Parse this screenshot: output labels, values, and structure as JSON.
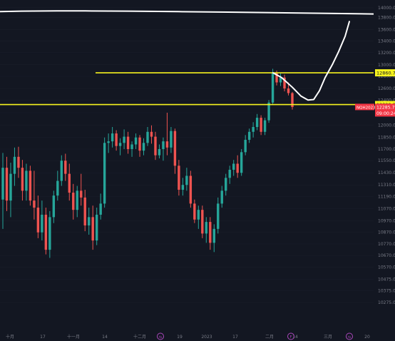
{
  "chart_data": {
    "type": "candlestick",
    "symbol_label": "NQH2023",
    "price_axis": {
      "min": 10275.0,
      "max": 14000.0,
      "ticks": [
        14000.0,
        13800.0,
        13600.0,
        13400.0,
        13200.0,
        13000.0,
        12800.0,
        12600.0,
        12400.0,
        12200.0,
        12000.0,
        11850.0,
        11700.0,
        11550.0,
        11430.0,
        11310.0,
        11190.0,
        11070.0,
        10970.0,
        10870.0,
        10770.0,
        10670.0,
        10570.0,
        10475.0,
        10375.0,
        10275.0
      ],
      "tick_labels": [
        "14000.00",
        "13800.00",
        "13600.00",
        "13400.00",
        "13200.00",
        "13000.00",
        "12800.00",
        "12600.00",
        "12400.00",
        "12200.00",
        "12000.00",
        "11850.00",
        "11700.00",
        "11550.00",
        "11430.00",
        "11310.00",
        "11190.00",
        "11070.00",
        "10970.00",
        "10870.00",
        "10770.00",
        "10670.00",
        "10570.00",
        "10475.00",
        "10375.00",
        "10275.00"
      ]
    },
    "time_axis": {
      "labels": [
        "十月",
        "17",
        "十一月",
        "14",
        "十二月",
        "19",
        "2023",
        "17",
        "二月",
        "14",
        "三月",
        "20"
      ],
      "icon_labels": [
        "⇆",
        "F",
        "⇆"
      ]
    },
    "horizontal_levels": [
      {
        "price": 12860.75,
        "label": "12860.75",
        "color": "#f7f41e"
      },
      {
        "price": 12329.25,
        "label": "12329.25",
        "color": "#f7f41e"
      }
    ],
    "last_price": {
      "price": 12285.75,
      "symbol": "NQH2023",
      "value_label": "12285.75",
      "countdown": "09:00:24",
      "color": "#f23645"
    },
    "colors": {
      "up": "#26a69a",
      "down": "#ef5350",
      "background": "#131722",
      "grid": "#2a2e39",
      "text": "#787b86",
      "annotation": "#ffffff"
    },
    "candles": [
      {
        "o": 11160,
        "h": 11650,
        "l": 10900,
        "c": 11480
      },
      {
        "o": 11480,
        "h": 11600,
        "l": 11050,
        "c": 11150
      },
      {
        "o": 11150,
        "h": 11530,
        "l": 11000,
        "c": 11420
      },
      {
        "o": 11420,
        "h": 11720,
        "l": 11300,
        "c": 11600
      },
      {
        "o": 11600,
        "h": 11730,
        "l": 11380,
        "c": 11480
      },
      {
        "o": 11480,
        "h": 11560,
        "l": 11150,
        "c": 11250
      },
      {
        "o": 11250,
        "h": 11520,
        "l": 11150,
        "c": 11450
      },
      {
        "o": 11450,
        "h": 11500,
        "l": 11100,
        "c": 11150
      },
      {
        "o": 11150,
        "h": 11450,
        "l": 10980,
        "c": 11080
      },
      {
        "o": 11080,
        "h": 11200,
        "l": 10820,
        "c": 10870
      },
      {
        "o": 10870,
        "h": 11150,
        "l": 10800,
        "c": 11020
      },
      {
        "o": 11020,
        "h": 11080,
        "l": 10680,
        "c": 10720
      },
      {
        "o": 10720,
        "h": 11050,
        "l": 10650,
        "c": 11000
      },
      {
        "o": 11000,
        "h": 11250,
        "l": 10950,
        "c": 11200
      },
      {
        "o": 11200,
        "h": 11450,
        "l": 11150,
        "c": 11350
      },
      {
        "o": 11350,
        "h": 11620,
        "l": 11300,
        "c": 11550
      },
      {
        "o": 11550,
        "h": 11640,
        "l": 11350,
        "c": 11420
      },
      {
        "o": 11420,
        "h": 11520,
        "l": 11150,
        "c": 11230
      },
      {
        "o": 11230,
        "h": 11320,
        "l": 10980,
        "c": 11060
      },
      {
        "o": 11060,
        "h": 11300,
        "l": 11000,
        "c": 11250
      },
      {
        "o": 11250,
        "h": 11420,
        "l": 11100,
        "c": 11180
      },
      {
        "o": 11180,
        "h": 11260,
        "l": 10880,
        "c": 10930
      },
      {
        "o": 10930,
        "h": 11080,
        "l": 10850,
        "c": 11000
      },
      {
        "o": 11000,
        "h": 11100,
        "l": 10720,
        "c": 10800
      },
      {
        "o": 10800,
        "h": 11080,
        "l": 10760,
        "c": 11020
      },
      {
        "o": 11020,
        "h": 11220,
        "l": 10980,
        "c": 11120
      },
      {
        "o": 11120,
        "h": 11850,
        "l": 11080,
        "c": 11780
      },
      {
        "o": 11780,
        "h": 11900,
        "l": 11650,
        "c": 11800
      },
      {
        "o": 11800,
        "h": 11980,
        "l": 11720,
        "c": 11900
      },
      {
        "o": 11900,
        "h": 11940,
        "l": 11680,
        "c": 11740
      },
      {
        "o": 11740,
        "h": 11840,
        "l": 11620,
        "c": 11780
      },
      {
        "o": 11780,
        "h": 11950,
        "l": 11700,
        "c": 11860
      },
      {
        "o": 11860,
        "h": 11920,
        "l": 11640,
        "c": 11700
      },
      {
        "o": 11700,
        "h": 11800,
        "l": 11600,
        "c": 11760
      },
      {
        "o": 11760,
        "h": 11900,
        "l": 11700,
        "c": 11850
      },
      {
        "o": 11850,
        "h": 11880,
        "l": 11600,
        "c": 11680
      },
      {
        "o": 11680,
        "h": 11840,
        "l": 11620,
        "c": 11780
      },
      {
        "o": 11780,
        "h": 11980,
        "l": 11740,
        "c": 11920
      },
      {
        "o": 11920,
        "h": 12000,
        "l": 11770,
        "c": 11860
      },
      {
        "o": 11860,
        "h": 11920,
        "l": 11560,
        "c": 11620
      },
      {
        "o": 11620,
        "h": 11760,
        "l": 11580,
        "c": 11700
      },
      {
        "o": 11700,
        "h": 11850,
        "l": 11550,
        "c": 11800
      },
      {
        "o": 11800,
        "h": 12200,
        "l": 11620,
        "c": 11720
      },
      {
        "o": 11720,
        "h": 11980,
        "l": 11650,
        "c": 11930
      },
      {
        "o": 11930,
        "h": 11960,
        "l": 11420,
        "c": 11500
      },
      {
        "o": 11500,
        "h": 11560,
        "l": 11200,
        "c": 11260
      },
      {
        "o": 11260,
        "h": 11380,
        "l": 11200,
        "c": 11310
      },
      {
        "o": 11310,
        "h": 11480,
        "l": 11250,
        "c": 11400
      },
      {
        "o": 11400,
        "h": 11450,
        "l": 11080,
        "c": 11120
      },
      {
        "o": 11120,
        "h": 11160,
        "l": 10950,
        "c": 10980
      },
      {
        "o": 10980,
        "h": 11100,
        "l": 10900,
        "c": 11060
      },
      {
        "o": 11060,
        "h": 11100,
        "l": 10820,
        "c": 10860
      },
      {
        "o": 10860,
        "h": 11000,
        "l": 10780,
        "c": 10960
      },
      {
        "o": 10960,
        "h": 11000,
        "l": 10720,
        "c": 10780
      },
      {
        "o": 10780,
        "h": 10940,
        "l": 10700,
        "c": 10900
      },
      {
        "o": 10900,
        "h": 11180,
        "l": 10860,
        "c": 11120
      },
      {
        "o": 11120,
        "h": 11300,
        "l": 11080,
        "c": 11250
      },
      {
        "o": 11250,
        "h": 11420,
        "l": 11200,
        "c": 11380
      },
      {
        "o": 11380,
        "h": 11500,
        "l": 11320,
        "c": 11460
      },
      {
        "o": 11460,
        "h": 11560,
        "l": 11400,
        "c": 11520
      },
      {
        "o": 11520,
        "h": 11620,
        "l": 11380,
        "c": 11430
      },
      {
        "o": 11430,
        "h": 11700,
        "l": 11400,
        "c": 11660
      },
      {
        "o": 11660,
        "h": 11880,
        "l": 11620,
        "c": 11820
      },
      {
        "o": 11820,
        "h": 11960,
        "l": 11780,
        "c": 11920
      },
      {
        "o": 11920,
        "h": 12050,
        "l": 11850,
        "c": 11980
      },
      {
        "o": 11980,
        "h": 12180,
        "l": 11940,
        "c": 12120
      },
      {
        "o": 12120,
        "h": 12160,
        "l": 11880,
        "c": 11920
      },
      {
        "o": 11920,
        "h": 12120,
        "l": 11880,
        "c": 12080
      },
      {
        "o": 12080,
        "h": 12400,
        "l": 12040,
        "c": 12360
      },
      {
        "o": 12360,
        "h": 12930,
        "l": 12330,
        "c": 12860
      },
      {
        "o": 12860,
        "h": 12900,
        "l": 12650,
        "c": 12700
      },
      {
        "o": 12700,
        "h": 12850,
        "l": 12640,
        "c": 12780
      },
      {
        "o": 12780,
        "h": 12830,
        "l": 12550,
        "c": 12600
      },
      {
        "o": 12600,
        "h": 12700,
        "l": 12480,
        "c": 12520
      },
      {
        "o": 12520,
        "h": 12540,
        "l": 12250,
        "c": 12290
      }
    ]
  },
  "annotations": {
    "freehand_top_line": [
      [
        0.0,
        13920.0
      ],
      [
        30.0,
        13930.0
      ],
      [
        80.0,
        13935.0
      ],
      [
        120.0,
        13935.0
      ],
      [
        180.0,
        13930.0
      ],
      [
        250.0,
        13920.0
      ],
      [
        320.0,
        13910.0
      ],
      [
        400.0,
        13895.0
      ],
      [
        470.0,
        13880.0
      ],
      [
        524.0,
        13870.0
      ]
    ],
    "freehand_projection": [
      [
        383.0,
        12860.0
      ],
      [
        395.0,
        12780.0
      ],
      [
        410.0,
        12620.0
      ],
      [
        422.0,
        12470.0
      ],
      [
        432.0,
        12400.0
      ],
      [
        440.0,
        12410.0
      ],
      [
        448.0,
        12560.0
      ],
      [
        456.0,
        12780.0
      ],
      [
        466.0,
        13000.0
      ],
      [
        475.0,
        13220.0
      ],
      [
        484.0,
        13480.0
      ],
      [
        490.0,
        13730.0
      ]
    ]
  }
}
